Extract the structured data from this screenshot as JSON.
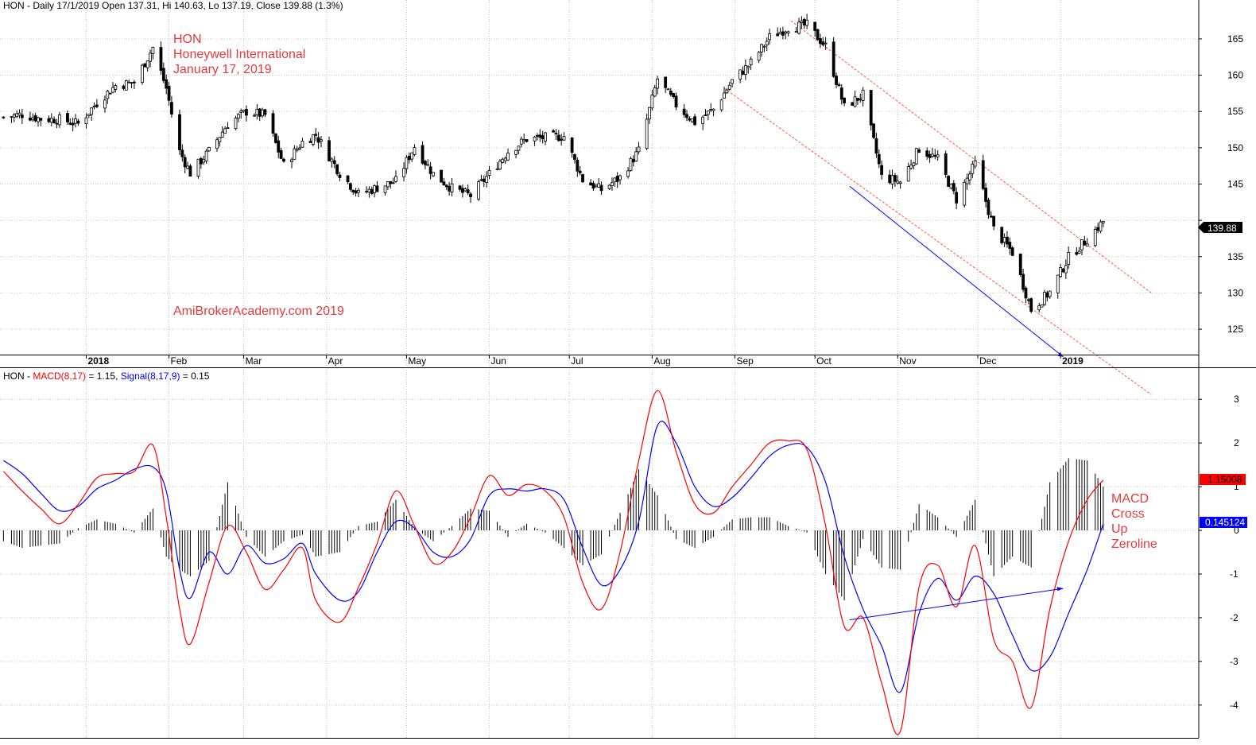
{
  "header": {
    "price": "HON - Daily 17/1/2019 Open 137.31, Hi 140.63, Lo 137.19, Close 139.88 (1.3%)",
    "macd_prefix": "HON - ",
    "macd_label": "MACD(8,17)",
    "macd_value": " = 1.15, ",
    "signal_label": "Signal(8,17,9)",
    "signal_value": " = 0.15"
  },
  "annotations": {
    "ticker": "HON",
    "company": "Honeywell International",
    "date": "January 17, 2019",
    "site": "AmiBrokerAcademy.com  2019",
    "macd_note": [
      "MACD",
      "Cross",
      "Up",
      "Zeroline"
    ]
  },
  "colors": {
    "macd": "#ff0000",
    "signal": "#0000ff",
    "annotation": "#e8393a",
    "channel": "#ff5a3c",
    "candle": "#000000",
    "grid": "#c8c8c8"
  },
  "chart_data": [
    {
      "type": "candlestick",
      "title": "HON - Daily 17/1/2019 Open 137.31, Hi 140.63, Lo 137.19, Close 139.88 (1.3%)",
      "last_close_label": "139.88",
      "ylim": [
        121.5,
        168.5
      ],
      "yticks": [
        125,
        130,
        135,
        140,
        145,
        150,
        155,
        160,
        165
      ],
      "ytick_labels": [
        "125",
        "130",
        "135",
        "",
        "145",
        "150",
        "155",
        "160",
        "165"
      ],
      "month_labels": [
        "2018",
        "Feb",
        "Mar",
        "Apr",
        "May",
        "Jun",
        "Jul",
        "Aug",
        "Sep",
        "Oct",
        "Nov",
        "Dec",
        "2019"
      ],
      "close_series": [
        {
          "date": "2017-12-01",
          "close": 154.2
        },
        {
          "date": "2017-12-08",
          "close": 154.6
        },
        {
          "date": "2017-12-15",
          "close": 154.0
        },
        {
          "date": "2017-12-22",
          "close": 153.9
        },
        {
          "date": "2017-12-29",
          "close": 153.3
        },
        {
          "date": "2018-01-05",
          "close": 156.2
        },
        {
          "date": "2018-01-12",
          "close": 158.6
        },
        {
          "date": "2018-01-19",
          "close": 159.0
        },
        {
          "date": "2018-01-26",
          "close": 163.8
        },
        {
          "date": "2018-01-31",
          "close": 158.2
        },
        {
          "date": "2018-02-05",
          "close": 149.5
        },
        {
          "date": "2018-02-09",
          "close": 146.5
        },
        {
          "date": "2018-02-16",
          "close": 149.5
        },
        {
          "date": "2018-02-23",
          "close": 153.3
        },
        {
          "date": "2018-03-02",
          "close": 155.0
        },
        {
          "date": "2018-03-09",
          "close": 154.5
        },
        {
          "date": "2018-03-16",
          "close": 147.6
        },
        {
          "date": "2018-03-23",
          "close": 150.8
        },
        {
          "date": "2018-03-28",
          "close": 151.8
        },
        {
          "date": "2018-04-06",
          "close": 146.5
        },
        {
          "date": "2018-04-13",
          "close": 143.6
        },
        {
          "date": "2018-04-20",
          "close": 144.5
        },
        {
          "date": "2018-04-27",
          "close": 145.4
        },
        {
          "date": "2018-05-04",
          "close": 150.2
        },
        {
          "date": "2018-05-11",
          "close": 146.4
        },
        {
          "date": "2018-05-18",
          "close": 144.4
        },
        {
          "date": "2018-05-25",
          "close": 143.4
        },
        {
          "date": "2018-06-01",
          "close": 146.4
        },
        {
          "date": "2018-06-08",
          "close": 149.5
        },
        {
          "date": "2018-06-15",
          "close": 151.2
        },
        {
          "date": "2018-06-22",
          "close": 151.4
        },
        {
          "date": "2018-06-29",
          "close": 151.6
        },
        {
          "date": "2018-07-06",
          "close": 145.6
        },
        {
          "date": "2018-07-13",
          "close": 144.2
        },
        {
          "date": "2018-07-20",
          "close": 145.9
        },
        {
          "date": "2018-07-27",
          "close": 149.6
        },
        {
          "date": "2018-08-03",
          "close": 159.5
        },
        {
          "date": "2018-08-10",
          "close": 155.9
        },
        {
          "date": "2018-08-17",
          "close": 153.5
        },
        {
          "date": "2018-08-24",
          "close": 155.3
        },
        {
          "date": "2018-08-31",
          "close": 159.2
        },
        {
          "date": "2018-09-07",
          "close": 161.7
        },
        {
          "date": "2018-09-14",
          "close": 165.2
        },
        {
          "date": "2018-09-21",
          "close": 166.6
        },
        {
          "date": "2018-09-28",
          "close": 166.9
        },
        {
          "date": "2018-10-05",
          "close": 164.0
        },
        {
          "date": "2018-10-12",
          "close": 155.6
        },
        {
          "date": "2018-10-19",
          "close": 157.3
        },
        {
          "date": "2018-10-26",
          "close": 146.0
        },
        {
          "date": "2018-11-02",
          "close": 145.3
        },
        {
          "date": "2018-11-09",
          "close": 149.9
        },
        {
          "date": "2018-11-16",
          "close": 148.4
        },
        {
          "date": "2018-11-23",
          "close": 142.9
        },
        {
          "date": "2018-11-30",
          "close": 147.8
        },
        {
          "date": "2018-12-07",
          "close": 138.8
        },
        {
          "date": "2018-12-14",
          "close": 135.6
        },
        {
          "date": "2018-12-21",
          "close": 127.7
        },
        {
          "date": "2018-12-28",
          "close": 130.1
        },
        {
          "date": "2019-01-04",
          "close": 134.9
        },
        {
          "date": "2019-01-11",
          "close": 137.4
        },
        {
          "date": "2019-01-17",
          "close": 139.88
        }
      ],
      "trend_lines": [
        {
          "name": "channel-upper",
          "color": "#ff5a3c",
          "dashed": true,
          "from": {
            "date": "2018-09-22",
            "value": 167.5
          },
          "to": {
            "date": "2019-02-04",
            "value": 130.0
          }
        },
        {
          "name": "channel-lower",
          "color": "#ff5a3c",
          "dashed": true,
          "from": {
            "date": "2018-08-28",
            "value": 158.2
          },
          "to": {
            "date": "2019-02-04",
            "value": 116.0
          }
        },
        {
          "name": "price-trend",
          "color": "#0000ff",
          "dashed": false,
          "from": {
            "date": "2018-10-14",
            "value": 144.7
          },
          "to": {
            "date": "2019-01-02",
            "value": 121.2
          }
        }
      ]
    },
    {
      "type": "line",
      "title": "HON - MACD(8,17) = 1.15, Signal(8,17,9) = 0.15",
      "ylim": [
        -4.75,
        3.35
      ],
      "yticks": [
        -4,
        -3,
        -2,
        -1,
        0,
        1,
        2,
        3
      ],
      "ytick_labels": [
        "-4",
        "-3",
        "-2",
        "-1",
        "0",
        "1",
        "2",
        "3"
      ],
      "value_labels": {
        "macd": "1.15008",
        "signal": "0.145124"
      },
      "series": [
        {
          "name": "MACD(8,17)",
          "color": "#ff0000",
          "values": [
            {
              "date": "2017-12-01",
              "value": 1.35
            },
            {
              "date": "2017-12-08",
              "value": 0.9
            },
            {
              "date": "2017-12-15",
              "value": 0.5
            },
            {
              "date": "2017-12-22",
              "value": 0.15
            },
            {
              "date": "2017-12-29",
              "value": 0.6
            },
            {
              "date": "2018-01-05",
              "value": 1.2
            },
            {
              "date": "2018-01-12",
              "value": 1.3
            },
            {
              "date": "2018-01-19",
              "value": 1.35
            },
            {
              "date": "2018-01-26",
              "value": 1.95
            },
            {
              "date": "2018-01-31",
              "value": 0.3
            },
            {
              "date": "2018-02-05",
              "value": -1.8
            },
            {
              "date": "2018-02-09",
              "value": -2.6
            },
            {
              "date": "2018-02-16",
              "value": -1.2
            },
            {
              "date": "2018-02-23",
              "value": 0.1
            },
            {
              "date": "2018-03-02",
              "value": -0.5
            },
            {
              "date": "2018-03-09",
              "value": -1.35
            },
            {
              "date": "2018-03-16",
              "value": -0.9
            },
            {
              "date": "2018-03-23",
              "value": -0.4
            },
            {
              "date": "2018-03-28",
              "value": -1.6
            },
            {
              "date": "2018-04-06",
              "value": -2.1
            },
            {
              "date": "2018-04-13",
              "value": -1.3
            },
            {
              "date": "2018-04-20",
              "value": -0.3
            },
            {
              "date": "2018-04-27",
              "value": 0.9
            },
            {
              "date": "2018-05-04",
              "value": 0.1
            },
            {
              "date": "2018-05-11",
              "value": -0.75
            },
            {
              "date": "2018-05-18",
              "value": -0.5
            },
            {
              "date": "2018-05-25",
              "value": 0.3
            },
            {
              "date": "2018-06-01",
              "value": 1.25
            },
            {
              "date": "2018-06-08",
              "value": 0.8
            },
            {
              "date": "2018-06-15",
              "value": 1.05
            },
            {
              "date": "2018-06-22",
              "value": 0.9
            },
            {
              "date": "2018-06-29",
              "value": 0.3
            },
            {
              "date": "2018-07-06",
              "value": -1.2
            },
            {
              "date": "2018-07-13",
              "value": -1.8
            },
            {
              "date": "2018-07-20",
              "value": -0.5
            },
            {
              "date": "2018-07-27",
              "value": 1.6
            },
            {
              "date": "2018-08-03",
              "value": 3.2
            },
            {
              "date": "2018-08-10",
              "value": 1.8
            },
            {
              "date": "2018-08-17",
              "value": 0.6
            },
            {
              "date": "2018-08-24",
              "value": 0.4
            },
            {
              "date": "2018-08-31",
              "value": 1.0
            },
            {
              "date": "2018-09-07",
              "value": 1.5
            },
            {
              "date": "2018-09-14",
              "value": 2.0
            },
            {
              "date": "2018-09-21",
              "value": 2.05
            },
            {
              "date": "2018-09-28",
              "value": 1.85
            },
            {
              "date": "2018-10-05",
              "value": 0.1
            },
            {
              "date": "2018-10-12",
              "value": -2.2
            },
            {
              "date": "2018-10-19",
              "value": -2.0
            },
            {
              "date": "2018-10-26",
              "value": -3.5
            },
            {
              "date": "2018-11-02",
              "value": -4.6
            },
            {
              "date": "2018-11-09",
              "value": -1.3
            },
            {
              "date": "2018-11-16",
              "value": -0.8
            },
            {
              "date": "2018-11-23",
              "value": -1.75
            },
            {
              "date": "2018-11-30",
              "value": -0.35
            },
            {
              "date": "2018-12-07",
              "value": -2.5
            },
            {
              "date": "2018-12-14",
              "value": -3.0
            },
            {
              "date": "2018-12-21",
              "value": -4.05
            },
            {
              "date": "2018-12-28",
              "value": -1.8
            },
            {
              "date": "2019-01-04",
              "value": -0.25
            },
            {
              "date": "2019-01-11",
              "value": 0.7
            },
            {
              "date": "2019-01-17",
              "value": 1.15
            }
          ]
        },
        {
          "name": "Signal(8,17,9)",
          "color": "#0000ff",
          "values": [
            {
              "date": "2017-12-01",
              "value": 1.6
            },
            {
              "date": "2017-12-08",
              "value": 1.3
            },
            {
              "date": "2017-12-15",
              "value": 0.85
            },
            {
              "date": "2017-12-22",
              "value": 0.45
            },
            {
              "date": "2017-12-29",
              "value": 0.55
            },
            {
              "date": "2018-01-05",
              "value": 0.95
            },
            {
              "date": "2018-01-12",
              "value": 1.15
            },
            {
              "date": "2018-01-19",
              "value": 1.4
            },
            {
              "date": "2018-01-26",
              "value": 1.45
            },
            {
              "date": "2018-01-31",
              "value": 0.9
            },
            {
              "date": "2018-02-05",
              "value": -0.9
            },
            {
              "date": "2018-02-09",
              "value": -1.55
            },
            {
              "date": "2018-02-16",
              "value": -0.5
            },
            {
              "date": "2018-02-23",
              "value": -1.0
            },
            {
              "date": "2018-03-02",
              "value": -0.35
            },
            {
              "date": "2018-03-09",
              "value": -0.75
            },
            {
              "date": "2018-03-16",
              "value": -0.65
            },
            {
              "date": "2018-03-23",
              "value": -0.3
            },
            {
              "date": "2018-03-28",
              "value": -1.0
            },
            {
              "date": "2018-04-06",
              "value": -1.6
            },
            {
              "date": "2018-04-13",
              "value": -1.4
            },
            {
              "date": "2018-04-20",
              "value": -0.5
            },
            {
              "date": "2018-04-27",
              "value": 0.2
            },
            {
              "date": "2018-05-04",
              "value": 0.05
            },
            {
              "date": "2018-05-11",
              "value": -0.5
            },
            {
              "date": "2018-05-18",
              "value": -0.6
            },
            {
              "date": "2018-05-25",
              "value": -0.2
            },
            {
              "date": "2018-06-01",
              "value": 0.8
            },
            {
              "date": "2018-06-08",
              "value": 0.95
            },
            {
              "date": "2018-06-15",
              "value": 0.9
            },
            {
              "date": "2018-06-22",
              "value": 0.95
            },
            {
              "date": "2018-06-29",
              "value": 0.7
            },
            {
              "date": "2018-07-06",
              "value": -0.4
            },
            {
              "date": "2018-07-13",
              "value": -1.25
            },
            {
              "date": "2018-07-20",
              "value": -0.9
            },
            {
              "date": "2018-07-27",
              "value": 0.2
            },
            {
              "date": "2018-08-03",
              "value": 2.4
            },
            {
              "date": "2018-08-10",
              "value": 2.0
            },
            {
              "date": "2018-08-17",
              "value": 1.0
            },
            {
              "date": "2018-08-24",
              "value": 0.55
            },
            {
              "date": "2018-08-31",
              "value": 0.75
            },
            {
              "date": "2018-09-07",
              "value": 1.2
            },
            {
              "date": "2018-09-14",
              "value": 1.7
            },
            {
              "date": "2018-09-21",
              "value": 1.95
            },
            {
              "date": "2018-09-28",
              "value": 1.9
            },
            {
              "date": "2018-10-05",
              "value": 1.1
            },
            {
              "date": "2018-10-12",
              "value": -0.6
            },
            {
              "date": "2018-10-19",
              "value": -1.8
            },
            {
              "date": "2018-10-26",
              "value": -2.65
            },
            {
              "date": "2018-11-02",
              "value": -3.7
            },
            {
              "date": "2018-11-09",
              "value": -1.9
            },
            {
              "date": "2018-11-16",
              "value": -1.1
            },
            {
              "date": "2018-11-23",
              "value": -1.6
            },
            {
              "date": "2018-11-30",
              "value": -1.05
            },
            {
              "date": "2018-12-07",
              "value": -1.45
            },
            {
              "date": "2018-12-14",
              "value": -2.4
            },
            {
              "date": "2018-12-21",
              "value": -3.2
            },
            {
              "date": "2018-12-28",
              "value": -2.9
            },
            {
              "date": "2019-01-04",
              "value": -1.9
            },
            {
              "date": "2019-01-11",
              "value": -0.9
            },
            {
              "date": "2019-01-17",
              "value": 0.15
            }
          ]
        }
      ],
      "trend_lines": [
        {
          "name": "macd-divergence",
          "color": "#0000ff",
          "from": {
            "date": "2018-10-14",
            "value": -2.05
          },
          "to": {
            "date": "2019-01-02",
            "value": -1.33
          }
        }
      ]
    }
  ]
}
